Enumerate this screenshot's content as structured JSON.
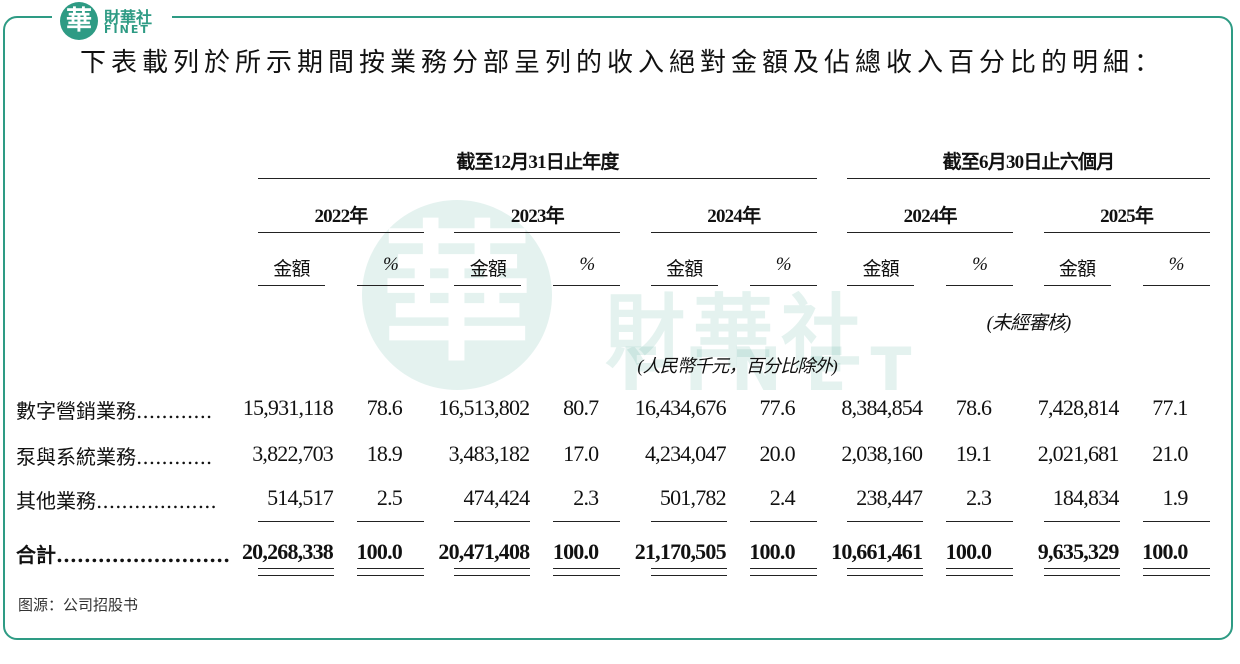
{
  "brand": {
    "name": "財華社",
    "latin": "FINET"
  },
  "title": "下表載列於所示期間按業務分部呈列的收入絕對金額及佔總收入百分比的明細：",
  "watermark": {
    "name": "財華社",
    "latin": "FINET"
  },
  "table": {
    "groups": [
      "截至12月31日止年度",
      "截至6月30日止六個月"
    ],
    "years": [
      "2022年",
      "2023年",
      "2024年",
      "2024年",
      "2025年"
    ],
    "subheaders": [
      "金額",
      "%",
      "金額",
      "%",
      "金額",
      "%",
      "金額",
      "%",
      "金額",
      "%"
    ],
    "unaudited": "(未經審核)",
    "unit": "(人民幣千元，百分比除外)",
    "rows": [
      {
        "label": "數字營銷業務............",
        "values": [
          "15,931,118",
          "78.6",
          "16,513,802",
          "80.7",
          "16,434,676",
          "77.6",
          "8,384,854",
          "78.6",
          "7,428,814",
          "77.1"
        ]
      },
      {
        "label": "泵與系統業務............",
        "values": [
          "3,822,703",
          "18.9",
          "3,483,182",
          "17.0",
          "4,234,047",
          "20.0",
          "2,038,160",
          "19.1",
          "2,021,681",
          "21.0"
        ]
      },
      {
        "label": "其他業務...................",
        "values": [
          "514,517",
          "2.5",
          "474,424",
          "2.3",
          "501,782",
          "2.4",
          "238,447",
          "2.3",
          "184,834",
          "1.9"
        ]
      },
      {
        "label": "合計.........................",
        "values": [
          "20,268,338",
          "100.0",
          "20,471,408",
          "100.0",
          "21,170,505",
          "100.0",
          "10,661,461",
          "100.0",
          "9,635,329",
          "100.0"
        ]
      }
    ]
  },
  "source": "图源：公司招股书"
}
